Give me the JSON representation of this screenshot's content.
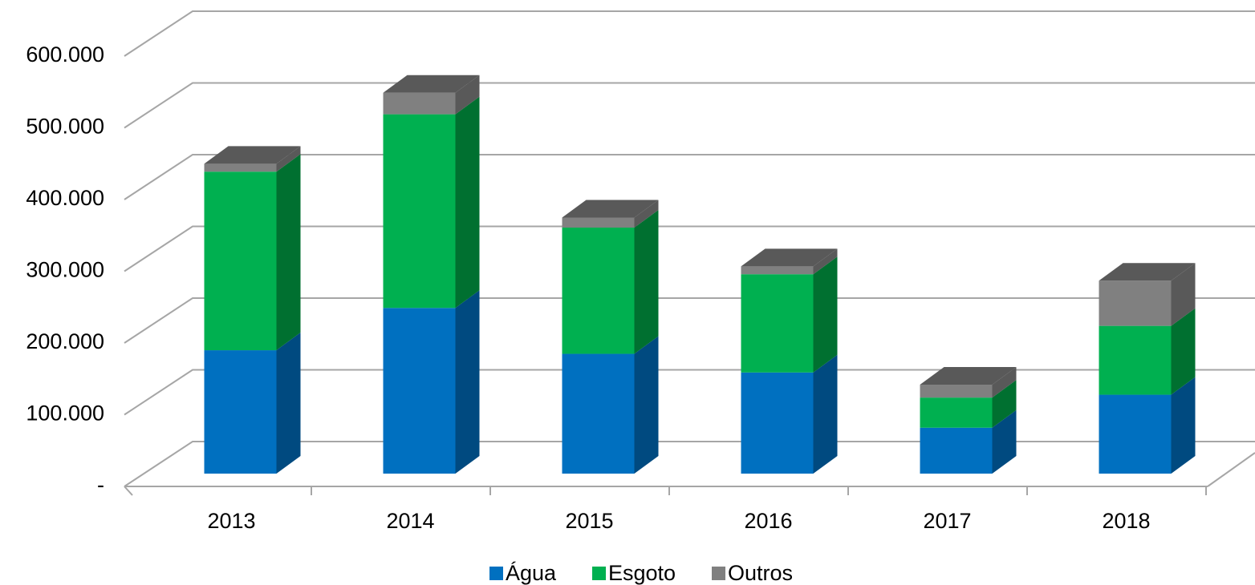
{
  "chart_data": {
    "type": "bar3d_stacked",
    "categories": [
      "2013",
      "2014",
      "2015",
      "2016",
      "2017",
      "2018"
    ],
    "series": [
      {
        "name": "Água",
        "color": "#0070c0",
        "side_color": "#004a80",
        "values": [
          172000,
          231000,
          167000,
          141000,
          64000,
          110000
        ]
      },
      {
        "name": "Esgoto",
        "color": "#00b050",
        "side_color": "#007030",
        "values": [
          249000,
          270000,
          176000,
          137000,
          42000,
          96000
        ]
      },
      {
        "name": "Outros",
        "color": "#808080",
        "side_color": "#595959",
        "values": [
          11000,
          30000,
          14000,
          11000,
          18000,
          63000
        ]
      }
    ],
    "ylim": [
      0,
      600000
    ],
    "yticks": [
      {
        "value": 0,
        "label": "-"
      },
      {
        "value": 100000,
        "label": "100.000"
      },
      {
        "value": 200000,
        "label": "200.000"
      },
      {
        "value": 300000,
        "label": "300.000"
      },
      {
        "value": 400000,
        "label": "400.000"
      },
      {
        "value": 500000,
        "label": "500.000"
      },
      {
        "value": 600000,
        "label": "600.000"
      }
    ],
    "grid": true,
    "legend": "bottom"
  }
}
